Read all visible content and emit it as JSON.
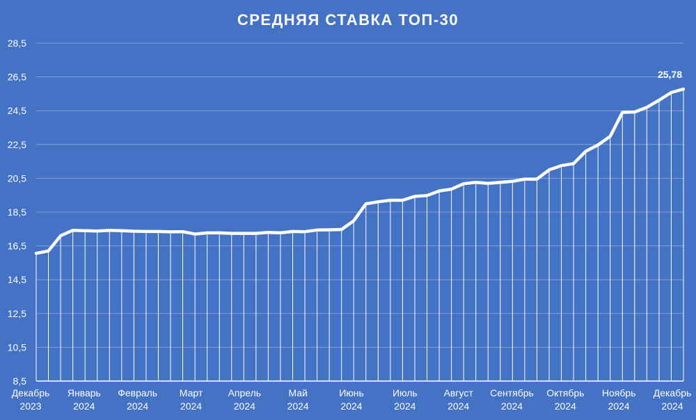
{
  "chart_data": {
    "type": "line",
    "title": "СРЕДНЯЯ СТАВКА ТОП-30",
    "xlabel": "",
    "ylabel": "",
    "ylim": [
      8.5,
      28.5
    ],
    "yticks": [
      "8,5",
      "10,5",
      "12,5",
      "14,5",
      "16,5",
      "18,5",
      "20,5",
      "22,5",
      "24,5",
      "26,5",
      "28,5"
    ],
    "x_tick_labels": [
      {
        "month": "Декабрь",
        "year": "2023"
      },
      {
        "month": "Январь",
        "year": "2024"
      },
      {
        "month": "Февраль",
        "year": "2024"
      },
      {
        "month": "Март",
        "year": "2024"
      },
      {
        "month": "Апрель",
        "year": "2024"
      },
      {
        "month": "Май",
        "year": "2024"
      },
      {
        "month": "Июнь",
        "year": "2024"
      },
      {
        "month": "Июль",
        "year": "2024"
      },
      {
        "month": "Август",
        "year": "2024"
      },
      {
        "month": "Сентябрь",
        "year": "2024"
      },
      {
        "month": "Октябрь",
        "year": "2024"
      },
      {
        "month": "Ноябрь",
        "year": "2024"
      },
      {
        "month": "Декабрь",
        "year": "2024"
      }
    ],
    "grid": true,
    "drop_lines": true,
    "line_color": "#ffffff",
    "background_color": "#4472c4",
    "values": [
      16.06,
      16.2,
      17.1,
      17.42,
      17.4,
      17.38,
      17.42,
      17.4,
      17.37,
      17.35,
      17.35,
      17.33,
      17.34,
      17.2,
      17.27,
      17.27,
      17.24,
      17.24,
      17.24,
      17.3,
      17.27,
      17.35,
      17.34,
      17.44,
      17.45,
      17.47,
      17.98,
      18.99,
      19.11,
      19.2,
      19.2,
      19.43,
      19.48,
      19.75,
      19.86,
      20.18,
      20.26,
      20.2,
      20.26,
      20.32,
      20.45,
      20.45,
      21.0,
      21.25,
      21.37,
      22.1,
      22.47,
      22.98,
      24.4,
      24.42,
      24.7,
      25.12,
      25.58,
      25.78
    ],
    "last_value_label": "25,78"
  }
}
